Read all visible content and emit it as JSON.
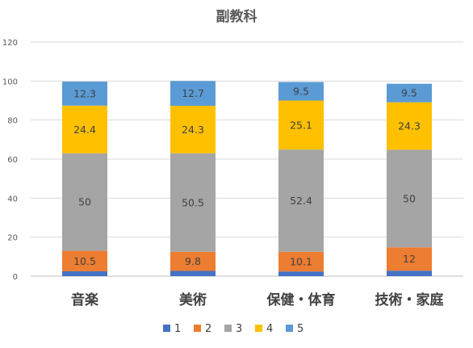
{
  "chart_data": {
    "type": "bar",
    "stacked": true,
    "title": "副教科",
    "xlabel": "",
    "ylabel": "",
    "ylim": [
      0,
      120
    ],
    "yticks": [
      0,
      20,
      40,
      60,
      80,
      100,
      120
    ],
    "grid": true,
    "legend_position": "bottom",
    "categories": [
      "音楽",
      "美術",
      "保健・体育",
      "技術・家庭"
    ],
    "series": [
      {
        "name": "1",
        "color": "#4472C4",
        "values": [
          2.5,
          2.7,
          2.4,
          2.8
        ],
        "labels": [
          "",
          "",
          "",
          ""
        ]
      },
      {
        "name": "2",
        "color": "#ED7D31",
        "values": [
          10.5,
          9.8,
          10.1,
          12
        ],
        "labels": [
          "10.5",
          "9.8",
          "10.1",
          "12"
        ]
      },
      {
        "name": "3",
        "color": "#A5A5A5",
        "values": [
          50,
          50.5,
          52.4,
          50
        ],
        "labels": [
          "50",
          "50.5",
          "52.4",
          "50"
        ]
      },
      {
        "name": "4",
        "color": "#FFC000",
        "values": [
          24.4,
          24.3,
          25.1,
          24.3
        ],
        "labels": [
          "24.4",
          "24.3",
          "25.1",
          "24.3"
        ]
      },
      {
        "name": "5",
        "color": "#5B9BD5",
        "values": [
          12.3,
          12.7,
          9.5,
          9.5
        ],
        "labels": [
          "12.3",
          "12.7",
          "9.5",
          "9.5"
        ]
      }
    ]
  }
}
